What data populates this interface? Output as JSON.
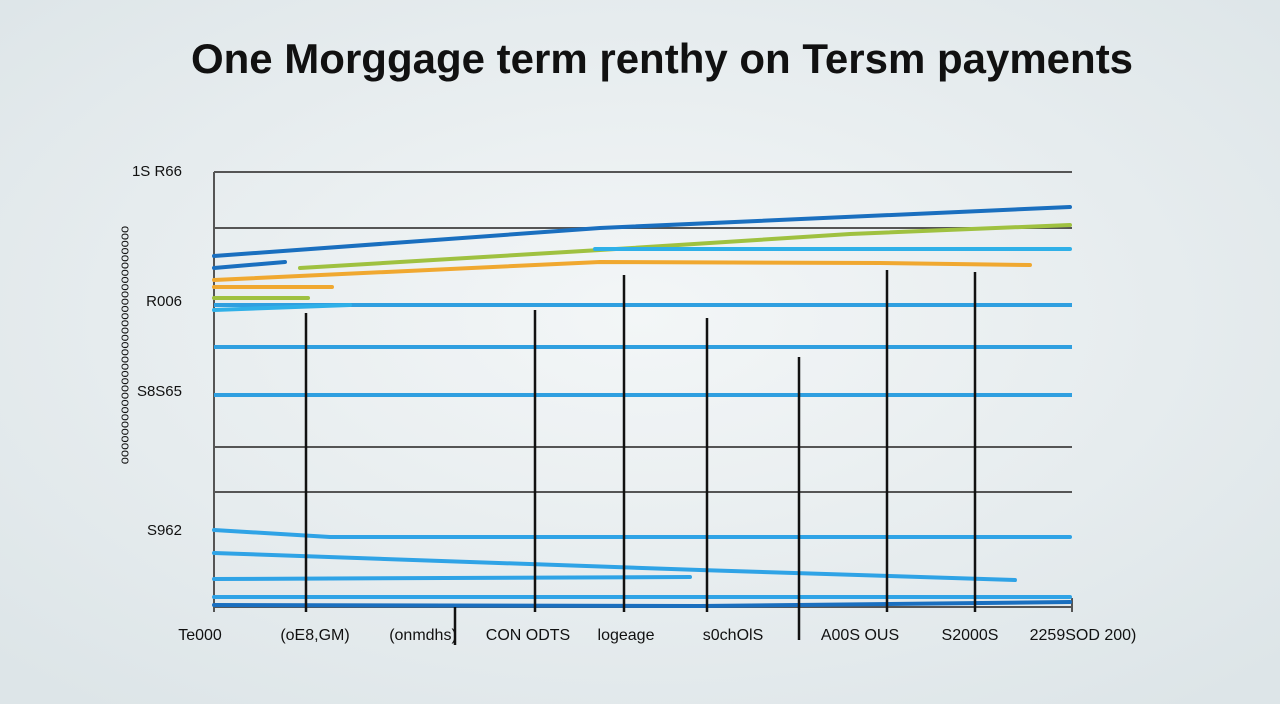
{
  "title": "One Morggage term ɼenthy on Tersm payments",
  "y_axis_label": "ooooooooooooooooooooooooooooooooo",
  "y_labels": [
    "1S R66",
    "R006",
    "S8S65",
    "S962"
  ],
  "x_labels": [
    "Te000",
    "(oE8,GM)",
    "(onmdhs)",
    "CON ODTS",
    "logeage",
    "s0chOlS",
    "A00S OUS",
    "S2000S",
    "2259SOD 200)"
  ]
}
